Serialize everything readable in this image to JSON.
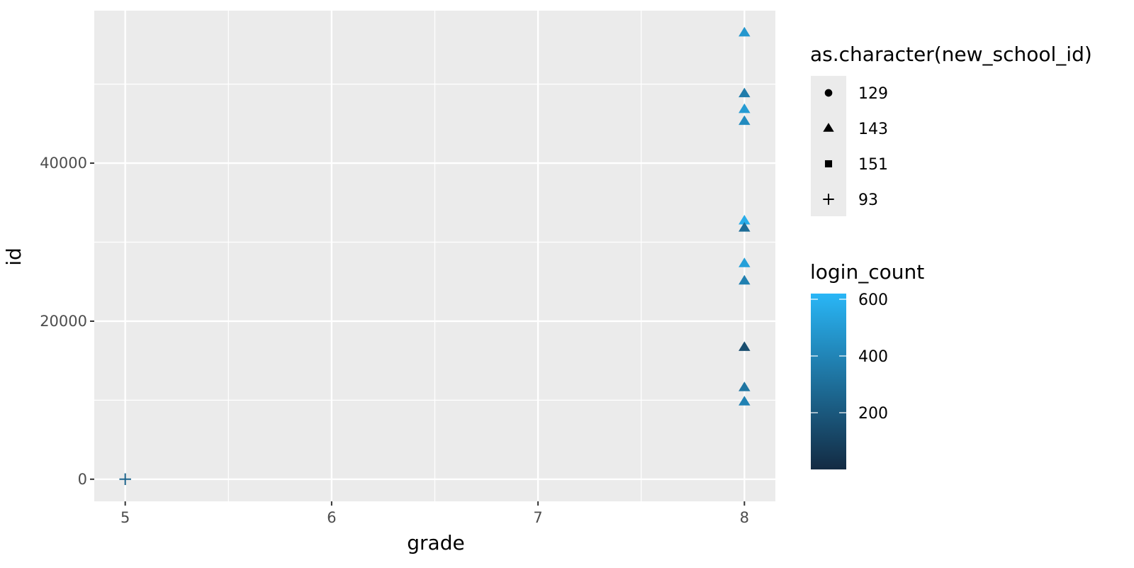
{
  "chart_data": {
    "type": "scatter",
    "title": "",
    "xlabel": "grade",
    "ylabel": "id",
    "xlim": [
      4.85,
      8.15
    ],
    "ylim": [
      -2800,
      59300
    ],
    "x_ticks": [
      5,
      6,
      7,
      8
    ],
    "x_tick_labels": [
      "5",
      "6",
      "7",
      "8"
    ],
    "y_ticks": [
      0,
      20000,
      40000
    ],
    "y_tick_labels": [
      "0",
      "20000",
      "40000"
    ],
    "grid": true,
    "panel_background": "#ebebeb",
    "points": [
      {
        "x": 5,
        "y": 0,
        "shape": "93",
        "login_count": 250
      },
      {
        "x": 8,
        "y": 56500,
        "shape": "143",
        "login_count": 480
      },
      {
        "x": 8,
        "y": 48800,
        "shape": "143",
        "login_count": 360
      },
      {
        "x": 8,
        "y": 46800,
        "shape": "143",
        "login_count": 500
      },
      {
        "x": 8,
        "y": 45300,
        "shape": "143",
        "login_count": 430
      },
      {
        "x": 8,
        "y": 32700,
        "shape": "143",
        "login_count": 580
      },
      {
        "x": 8,
        "y": 31800,
        "shape": "143",
        "login_count": 290
      },
      {
        "x": 8,
        "y": 27300,
        "shape": "143",
        "login_count": 520
      },
      {
        "x": 8,
        "y": 25100,
        "shape": "143",
        "login_count": 380
      },
      {
        "x": 8,
        "y": 16700,
        "shape": "143",
        "login_count": 150
      },
      {
        "x": 8,
        "y": 11600,
        "shape": "143",
        "login_count": 330
      },
      {
        "x": 8,
        "y": 9800,
        "shape": "143",
        "login_count": 390
      }
    ],
    "legend": {
      "placement": "right",
      "shape_legend": {
        "title": "as.character(new_school_id)",
        "entries": [
          {
            "label": "129",
            "shape": "circle"
          },
          {
            "label": "143",
            "shape": "triangle"
          },
          {
            "label": "151",
            "shape": "square"
          },
          {
            "label": "93",
            "shape": "plus"
          }
        ]
      },
      "color_legend": {
        "title": "login_count",
        "min": 0,
        "max": 620,
        "low_color": "#132b43",
        "high_color": "#29b6f6",
        "ticks": [
          600,
          400,
          200
        ],
        "tick_labels": [
          "600",
          "400",
          "200"
        ]
      }
    }
  }
}
